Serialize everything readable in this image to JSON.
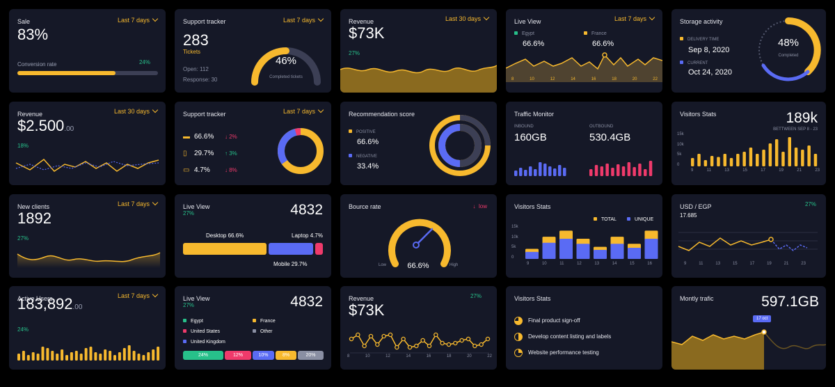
{
  "colors": {
    "bg": "#151827",
    "accent": "#f7b92e",
    "blue": "#5a6bf4",
    "green": "#27c08a",
    "red": "#ef3a6b",
    "track": "#3c3f55"
  },
  "c1": {
    "title": "Sale",
    "period": "Last 7 days",
    "value": "83%",
    "label": "Conversion rate",
    "change": "24%",
    "progress": 0.7
  },
  "c2": {
    "title": "Support tracker",
    "period": "Last 7 days",
    "value": "283",
    "sub": "Tickets",
    "open": "Open: 112",
    "response": "Response: 30",
    "gauge_pct": "46%",
    "gauge_label": "Completed tickets",
    "gauge": 0.46
  },
  "c3": {
    "title": "Revenue",
    "period": "Last 30 days",
    "value": "$73K",
    "change": "27%"
  },
  "c4": {
    "title": "Live View",
    "period": "Last 7 days",
    "legend1": "Egypt",
    "val1": "66.6%",
    "legend2": "France",
    "val2": "66.6%",
    "xticks": [
      "8",
      "10",
      "12",
      "14",
      "16",
      "18",
      "20",
      "22"
    ]
  },
  "c5": {
    "title": "Storage activity",
    "l1": "DELIVERY TIME",
    "d1": "Sep 8, 2020",
    "l2": "CURRENT",
    "d2": "Oct 24, 2020",
    "ring_pct": "48%",
    "ring_label": "Completed"
  },
  "c6": {
    "title": "Revenue",
    "period": "Last 30 days",
    "value": "$2.500",
    "cents": ".00",
    "change": "18%"
  },
  "c7": {
    "title": "Support tracker",
    "period": "Last 7 days",
    "rows": [
      {
        "icon": "chat-icon",
        "value": "66.6%",
        "delta": "2%",
        "dir": "down"
      },
      {
        "icon": "phone-icon",
        "value": "29.7%",
        "delta": "3%",
        "dir": "up"
      },
      {
        "icon": "laptop-icon",
        "value": "4.7%",
        "delta": "8%",
        "dir": "down"
      }
    ]
  },
  "c8": {
    "title": "Recommendation score",
    "l1": "POSITIVE",
    "v1": "66.6%",
    "l2": "NEGATIVE",
    "v2": "33.4%"
  },
  "c9": {
    "title": "Traffic Monitor",
    "l1": "INBOUND",
    "v1": "160GB",
    "l2": "OUTBOUND",
    "v2": "530.4GB"
  },
  "c10": {
    "title": "Visitors Stats",
    "value": "189k",
    "sub": "BETTWEEN SEP 8 - 23",
    "yticks": [
      "15k",
      "10k",
      "5k",
      "0"
    ],
    "xticks": [
      "9",
      "11",
      "13",
      "15",
      "17",
      "19",
      "21",
      "23"
    ]
  },
  "c11": {
    "title": "New clients",
    "period": "Last 7 days",
    "value": "1892",
    "change": "27%"
  },
  "c12": {
    "title": "Live View",
    "change": "27%",
    "value": "4832",
    "desktop": "Desktop 66.6%",
    "laptop": "Laptop 4.7%",
    "mobile": "Mobile 29.7%"
  },
  "c13": {
    "title": "Bource rate",
    "status": "low",
    "value": "66.6%",
    "low": "Low",
    "high": "High"
  },
  "c14": {
    "title": "Visitors Stats",
    "legend1": "TOTAL",
    "legend2": "UNIQUE",
    "yticks": [
      "15k",
      "10k",
      "5k",
      "0"
    ],
    "xticks": [
      "9",
      "10",
      "11",
      "12",
      "13",
      "14",
      "15",
      "16"
    ]
  },
  "c15": {
    "title": "USD / EGP",
    "change": "27%",
    "value": "17.685",
    "xticks": [
      "9",
      "11",
      "13",
      "15",
      "17",
      "19",
      "21",
      "23"
    ]
  },
  "c16": {
    "title": "Active Users",
    "period": "Last 7 days",
    "value": "183,892",
    "cents": ".00",
    "change": "24%"
  },
  "c17": {
    "title": "Live View",
    "change": "27%",
    "value": "4832",
    "legend": [
      "Egypt",
      "France",
      "United States",
      "Other",
      "United Kingdom"
    ],
    "bars": [
      "24%",
      "12%",
      "10%",
      "8%",
      "20%"
    ]
  },
  "c18": {
    "title": "Revenue",
    "change": "27%",
    "value": "$73K",
    "xticks": [
      "8",
      "10",
      "12",
      "14",
      "16",
      "18",
      "20",
      "22"
    ]
  },
  "c19": {
    "title": "Visitors Stats",
    "items": [
      "Final product sign-off",
      "Develop content listing and labels",
      "Website performance testing"
    ]
  },
  "c20": {
    "title": "Montly trafic",
    "value": "597.1GB",
    "tooltip": "17 oct"
  }
}
